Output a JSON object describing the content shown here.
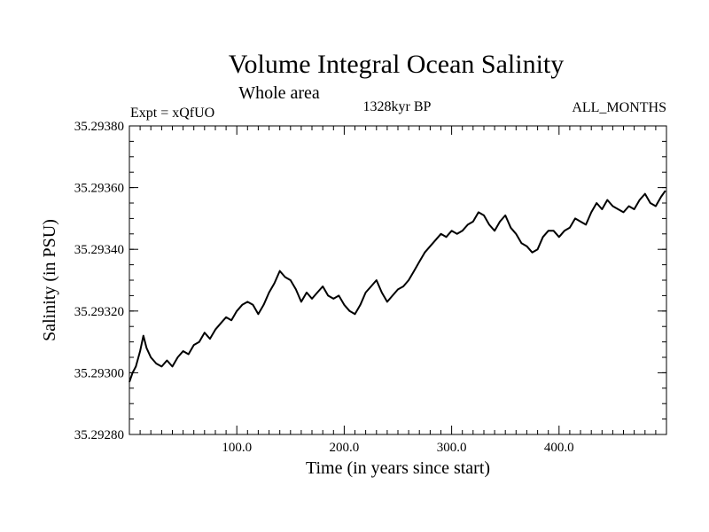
{
  "chart_data": {
    "type": "line",
    "title": "Volume Integral Ocean Salinity",
    "subtitle": "Whole area",
    "annotations": {
      "experiment": "Expt = xQfUO",
      "period": "1328kyr BP",
      "months": "ALL_MONTHS"
    },
    "xlabel": "Time (in years since start)",
    "ylabel": "Salinity (in PSU)",
    "xlim": [
      0,
      500
    ],
    "ylim": [
      35.2928,
      35.2938
    ],
    "x_ticks": [
      100,
      200,
      300,
      400
    ],
    "x_tick_labels": [
      "100.0",
      "200.0",
      "300.0",
      "400.0"
    ],
    "y_ticks": [
      35.2928,
      35.293,
      35.2932,
      35.2934,
      35.2936,
      35.2938
    ],
    "y_tick_labels": [
      "35.29280",
      "35.29300",
      "35.29320",
      "35.29340",
      "35.29360",
      "35.29380"
    ],
    "grid": false,
    "series": [
      {
        "name": "Salinity",
        "x": [
          0,
          3,
          6,
          10,
          13,
          16,
          20,
          25,
          30,
          35,
          40,
          45,
          50,
          55,
          60,
          65,
          70,
          75,
          80,
          85,
          90,
          95,
          100,
          105,
          110,
          115,
          120,
          125,
          130,
          135,
          140,
          145,
          150,
          155,
          160,
          165,
          170,
          175,
          180,
          185,
          190,
          195,
          200,
          205,
          210,
          215,
          220,
          225,
          230,
          235,
          240,
          245,
          250,
          255,
          260,
          265,
          270,
          275,
          280,
          285,
          290,
          295,
          300,
          305,
          310,
          315,
          320,
          325,
          330,
          335,
          340,
          345,
          350,
          355,
          360,
          365,
          370,
          375,
          380,
          385,
          390,
          395,
          400,
          405,
          410,
          415,
          420,
          425,
          430,
          435,
          440,
          445,
          450,
          455,
          460,
          465,
          470,
          475,
          480,
          485,
          490,
          495,
          499
        ],
        "values": [
          35.29297,
          35.293,
          35.29302,
          35.29307,
          35.29312,
          35.29308,
          35.29305,
          35.29303,
          35.29302,
          35.29304,
          35.29302,
          35.29305,
          35.29307,
          35.29306,
          35.29309,
          35.2931,
          35.29313,
          35.29311,
          35.29314,
          35.29316,
          35.29318,
          35.29317,
          35.2932,
          35.29322,
          35.29323,
          35.29322,
          35.29319,
          35.29322,
          35.29326,
          35.29329,
          35.29333,
          35.29331,
          35.2933,
          35.29327,
          35.29323,
          35.29326,
          35.29324,
          35.29326,
          35.29328,
          35.29325,
          35.29324,
          35.29325,
          35.29322,
          35.2932,
          35.29319,
          35.29322,
          35.29326,
          35.29328,
          35.2933,
          35.29326,
          35.29323,
          35.29325,
          35.29327,
          35.29328,
          35.2933,
          35.29333,
          35.29336,
          35.29339,
          35.29341,
          35.29343,
          35.29345,
          35.29344,
          35.29346,
          35.29345,
          35.29346,
          35.29348,
          35.29349,
          35.29352,
          35.29351,
          35.29348,
          35.29346,
          35.29349,
          35.29351,
          35.29347,
          35.29345,
          35.29342,
          35.29341,
          35.29339,
          35.2934,
          35.29344,
          35.29346,
          35.29346,
          35.29344,
          35.29346,
          35.29347,
          35.2935,
          35.29349,
          35.29348,
          35.29352,
          35.29355,
          35.29353,
          35.29356,
          35.29354,
          35.29353,
          35.29352,
          35.29354,
          35.29353,
          35.29356,
          35.29358,
          35.29355,
          35.29354,
          35.29357,
          35.29359
        ]
      }
    ]
  }
}
